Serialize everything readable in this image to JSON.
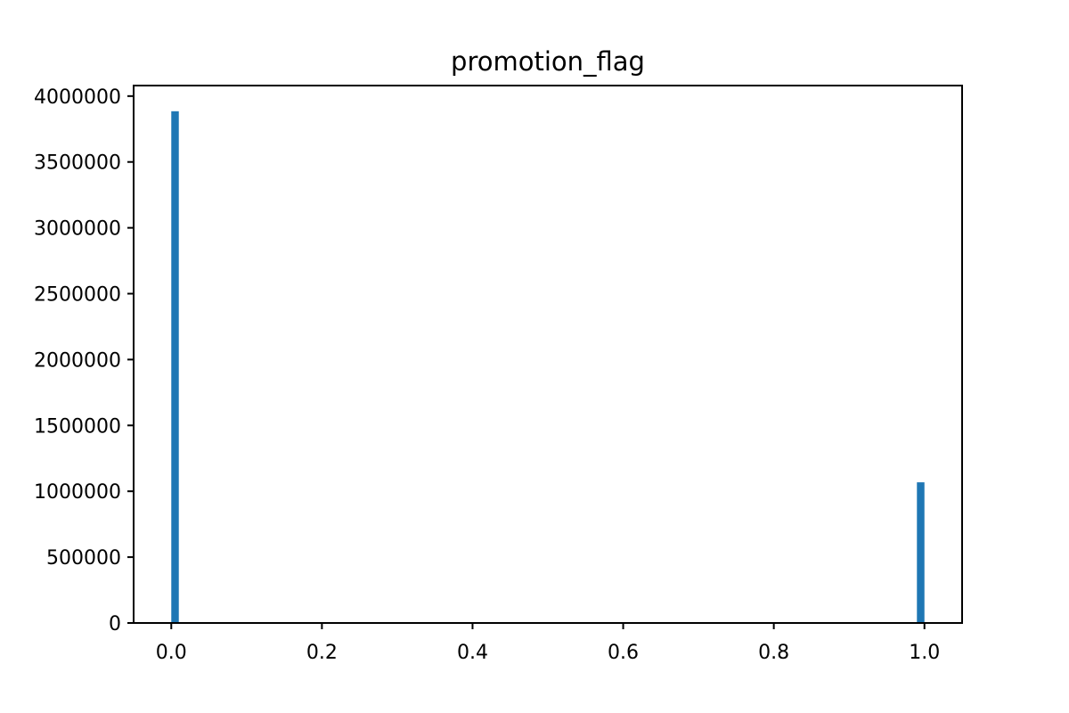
{
  "chart_data": {
    "type": "bar",
    "title": "promotion_flag",
    "xlabel": "",
    "ylabel": "",
    "xlim": [
      -0.05,
      1.05
    ],
    "ylim": [
      0,
      4080000
    ],
    "x_ticks": [
      "0.0",
      "0.2",
      "0.4",
      "0.6",
      "0.8",
      "1.0"
    ],
    "x_tick_values": [
      0.0,
      0.2,
      0.4,
      0.6,
      0.8,
      1.0
    ],
    "y_ticks": [
      "0",
      "500000",
      "1000000",
      "1500000",
      "2000000",
      "2500000",
      "3000000",
      "3500000",
      "4000000"
    ],
    "y_tick_values": [
      0,
      500000,
      1000000,
      1500000,
      2000000,
      2500000,
      3000000,
      3500000,
      4000000
    ],
    "bins": [
      {
        "start": 0.0,
        "end": 0.01,
        "value": 3885000
      },
      {
        "start": 0.99,
        "end": 1.0,
        "value": 1068000
      }
    ],
    "grid": false,
    "color": "#1f77b4"
  }
}
